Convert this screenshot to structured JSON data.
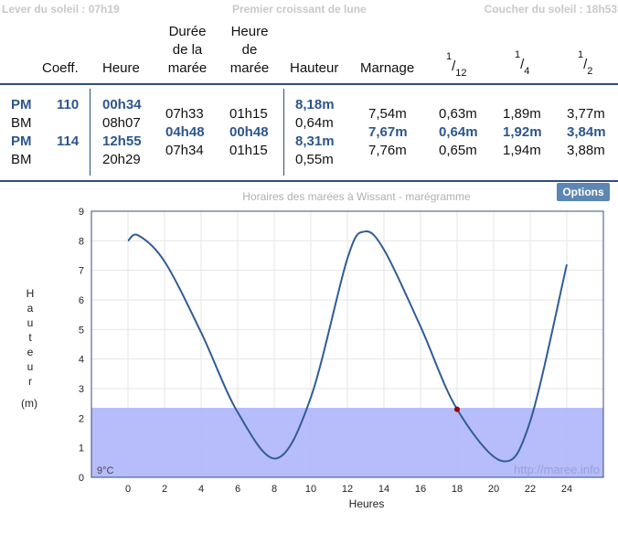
{
  "top": {
    "sunrise": "Lever du soleil : 07h19",
    "moon": "Premier croissant de lune",
    "sunset": "Coucher du soleil : 18h53"
  },
  "headers": {
    "coeff": "Coeff.",
    "heure": "Heure",
    "duree": [
      "Durée",
      "de la",
      "marée"
    ],
    "heure_maree": [
      "Heure",
      "de",
      "marée"
    ],
    "hauteur": "Hauteur",
    "marnage": "Marnage",
    "twelfth": [
      "1",
      "12"
    ],
    "quarter": [
      "1",
      "4"
    ],
    "half": [
      "1",
      "2"
    ]
  },
  "tides": [
    {
      "type": "PM",
      "coeff": "110",
      "heure": "00h34",
      "duree": "07h33",
      "heure_maree": "01h15",
      "hauteur": "8,18m",
      "marnage": "7,54m",
      "twelfth": "0,63m",
      "quarter": "1,89m",
      "half": "3,77m"
    },
    {
      "type": "BM",
      "coeff": "",
      "heure": "08h07",
      "duree": "04h48",
      "heure_maree": "00h48",
      "hauteur": "0,64m",
      "marnage": "7,67m",
      "twelfth": "0,64m",
      "quarter": "1,92m",
      "half": "3,84m"
    },
    {
      "type": "PM",
      "coeff": "114",
      "heure": "12h55",
      "duree": "07h34",
      "heure_maree": "01h15",
      "hauteur": "8,31m",
      "marnage": "7,76m",
      "twelfth": "0,65m",
      "quarter": "1,94m",
      "half": "3,88m"
    },
    {
      "type": "BM",
      "coeff": "",
      "heure": "20h29",
      "hauteur": "0,55m"
    }
  ],
  "options_label": "Options",
  "colors": {
    "accent": "#2d568d",
    "line": "#2f5d96",
    "shade": "#b3b8fb",
    "current_point": "#990000",
    "options_bg": "#5c86b3"
  },
  "chart_data": {
    "type": "line",
    "title": "Horaires des marées à Wissant - marégramme",
    "xlabel": "Heures",
    "ylabel": "Hauteur",
    "ylabel_unit": "(m)",
    "xlim": [
      -2,
      26
    ],
    "ylim": [
      0,
      9
    ],
    "xticks": [
      0,
      2,
      4,
      6,
      8,
      10,
      12,
      14,
      16,
      18,
      20,
      22,
      24
    ],
    "yticks": [
      0,
      1,
      2,
      3,
      4,
      5,
      6,
      7,
      8,
      9
    ],
    "grid": true,
    "shaded_band": {
      "from": 0,
      "to": 2.35
    },
    "temperature": "9°C",
    "watermark": "http://maree.info",
    "current_point": {
      "x": 18.0,
      "y": 2.3
    },
    "series": [
      {
        "x": [
          0,
          0.57,
          2,
          4,
          6,
          8.12,
          10,
          12,
          12.92,
          14,
          16,
          18,
          20.48,
          22,
          24
        ],
        "y": [
          8.0,
          8.18,
          7.3,
          4.9,
          2.2,
          0.64,
          2.7,
          7.4,
          8.31,
          7.7,
          5.1,
          2.3,
          0.55,
          1.9,
          7.2
        ]
      }
    ]
  }
}
